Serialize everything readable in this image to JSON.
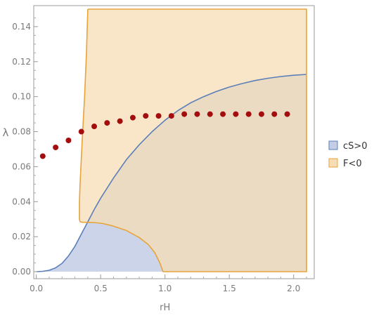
{
  "chart_data": {
    "type": "area",
    "xlabel": "rH",
    "ylabel": "λ",
    "xlim": [
      -0.02,
      2.16
    ],
    "ylim": [
      -0.004,
      0.152
    ],
    "x_ticks": [
      {
        "value": 0.0,
        "label": "0.0"
      },
      {
        "value": 0.5,
        "label": "0.5"
      },
      {
        "value": 1.0,
        "label": "1.0"
      },
      {
        "value": 1.5,
        "label": "1.5"
      },
      {
        "value": 2.0,
        "label": "2.0"
      }
    ],
    "y_ticks": [
      {
        "value": 0.0,
        "label": "0.00"
      },
      {
        "value": 0.02,
        "label": "0.02"
      },
      {
        "value": 0.04,
        "label": "0.04"
      },
      {
        "value": 0.06,
        "label": "0.06"
      },
      {
        "value": 0.08,
        "label": "0.08"
      },
      {
        "value": 0.1,
        "label": "0.10"
      },
      {
        "value": 0.12,
        "label": "0.12"
      },
      {
        "value": 0.14,
        "label": "0.14"
      }
    ],
    "grid": false,
    "legend_position": "right",
    "regions": [
      {
        "name": "cS>0",
        "fill": "#c3cde6",
        "stroke": "#5a7fb8",
        "points": [
          [
            0.0,
            0.0
          ],
          [
            0.05,
            0.0002
          ],
          [
            0.1,
            0.0008
          ],
          [
            0.15,
            0.0022
          ],
          [
            0.2,
            0.0048
          ],
          [
            0.25,
            0.009
          ],
          [
            0.3,
            0.0145
          ],
          [
            0.35,
            0.0215
          ],
          [
            0.4,
            0.0285
          ],
          [
            0.45,
            0.0355
          ],
          [
            0.5,
            0.042
          ],
          [
            0.6,
            0.0535
          ],
          [
            0.7,
            0.064
          ],
          [
            0.8,
            0.0725
          ],
          [
            0.9,
            0.08
          ],
          [
            1.0,
            0.0865
          ],
          [
            1.1,
            0.092
          ],
          [
            1.2,
            0.0965
          ],
          [
            1.3,
            0.1
          ],
          [
            1.4,
            0.103
          ],
          [
            1.5,
            0.1055
          ],
          [
            1.6,
            0.1075
          ],
          [
            1.7,
            0.1092
          ],
          [
            1.8,
            0.1105
          ],
          [
            1.9,
            0.1115
          ],
          [
            2.0,
            0.1122
          ],
          [
            2.1,
            0.1127
          ],
          [
            2.1,
            0.0
          ],
          [
            0.0,
            0.0
          ]
        ],
        "boundary": [
          [
            0.0,
            0.0
          ],
          [
            0.05,
            0.0002
          ],
          [
            0.1,
            0.0008
          ],
          [
            0.15,
            0.0022
          ],
          [
            0.2,
            0.0048
          ],
          [
            0.25,
            0.009
          ],
          [
            0.3,
            0.0145
          ],
          [
            0.35,
            0.0215
          ],
          [
            0.4,
            0.0285
          ],
          [
            0.45,
            0.0355
          ],
          [
            0.5,
            0.042
          ],
          [
            0.6,
            0.0535
          ],
          [
            0.7,
            0.064
          ],
          [
            0.8,
            0.0725
          ],
          [
            0.9,
            0.08
          ],
          [
            1.0,
            0.0865
          ],
          [
            1.1,
            0.092
          ],
          [
            1.2,
            0.0965
          ],
          [
            1.3,
            0.1
          ],
          [
            1.4,
            0.103
          ],
          [
            1.5,
            0.1055
          ],
          [
            1.6,
            0.1075
          ],
          [
            1.7,
            0.1092
          ],
          [
            1.8,
            0.1105
          ],
          [
            1.9,
            0.1115
          ],
          [
            2.0,
            0.1122
          ],
          [
            2.1,
            0.1127
          ]
        ]
      },
      {
        "name": "F<0",
        "fill": "#f7ddb5",
        "stroke": "#e8a33a",
        "points": [
          [
            0.4,
            0.15
          ],
          [
            2.1,
            0.15
          ],
          [
            2.1,
            0.0
          ],
          [
            0.985,
            0.0
          ],
          [
            0.96,
            0.005
          ],
          [
            0.92,
            0.011
          ],
          [
            0.87,
            0.0155
          ],
          [
            0.8,
            0.0195
          ],
          [
            0.7,
            0.0235
          ],
          [
            0.6,
            0.026
          ],
          [
            0.52,
            0.0275
          ],
          [
            0.45,
            0.0281
          ],
          [
            0.4,
            0.0282
          ],
          [
            0.36,
            0.0282
          ],
          [
            0.34,
            0.0285
          ],
          [
            0.335,
            0.03
          ],
          [
            0.335,
            0.04
          ],
          [
            0.34,
            0.05
          ],
          [
            0.35,
            0.065
          ],
          [
            0.36,
            0.08
          ],
          [
            0.375,
            0.1
          ],
          [
            0.39,
            0.125
          ],
          [
            0.4,
            0.15
          ]
        ],
        "boundary": [
          [
            0.4,
            0.15
          ],
          [
            2.1,
            0.15
          ],
          [
            2.1,
            0.0
          ],
          [
            0.985,
            0.0
          ],
          [
            0.96,
            0.005
          ],
          [
            0.92,
            0.011
          ],
          [
            0.87,
            0.0155
          ],
          [
            0.8,
            0.0195
          ],
          [
            0.7,
            0.0235
          ],
          [
            0.6,
            0.026
          ],
          [
            0.52,
            0.0275
          ],
          [
            0.45,
            0.0281
          ],
          [
            0.4,
            0.0282
          ],
          [
            0.36,
            0.0282
          ],
          [
            0.34,
            0.0285
          ],
          [
            0.335,
            0.03
          ],
          [
            0.335,
            0.04
          ],
          [
            0.34,
            0.05
          ],
          [
            0.35,
            0.065
          ],
          [
            0.36,
            0.08
          ],
          [
            0.375,
            0.1
          ],
          [
            0.39,
            0.125
          ],
          [
            0.4,
            0.15
          ]
        ]
      }
    ],
    "series": [
      {
        "type": "scatter",
        "color": "#a30d0d",
        "x": [
          0.05,
          0.15,
          0.25,
          0.35,
          0.45,
          0.55,
          0.65,
          0.75,
          0.85,
          0.95,
          1.05,
          1.15,
          1.25,
          1.35,
          1.45,
          1.55,
          1.65,
          1.75,
          1.85,
          1.95
        ],
        "y": [
          0.066,
          0.071,
          0.075,
          0.08,
          0.083,
          0.085,
          0.086,
          0.088,
          0.089,
          0.089,
          0.089,
          0.09,
          0.09,
          0.09,
          0.09,
          0.09,
          0.09,
          0.09,
          0.09,
          0.09
        ]
      }
    ],
    "legend": [
      {
        "label": "cS>0",
        "fill": "#c3cde6",
        "stroke": "#5a7fb8"
      },
      {
        "label": "F<0",
        "fill": "#f7ddb5",
        "stroke": "#e8a33a"
      }
    ]
  }
}
